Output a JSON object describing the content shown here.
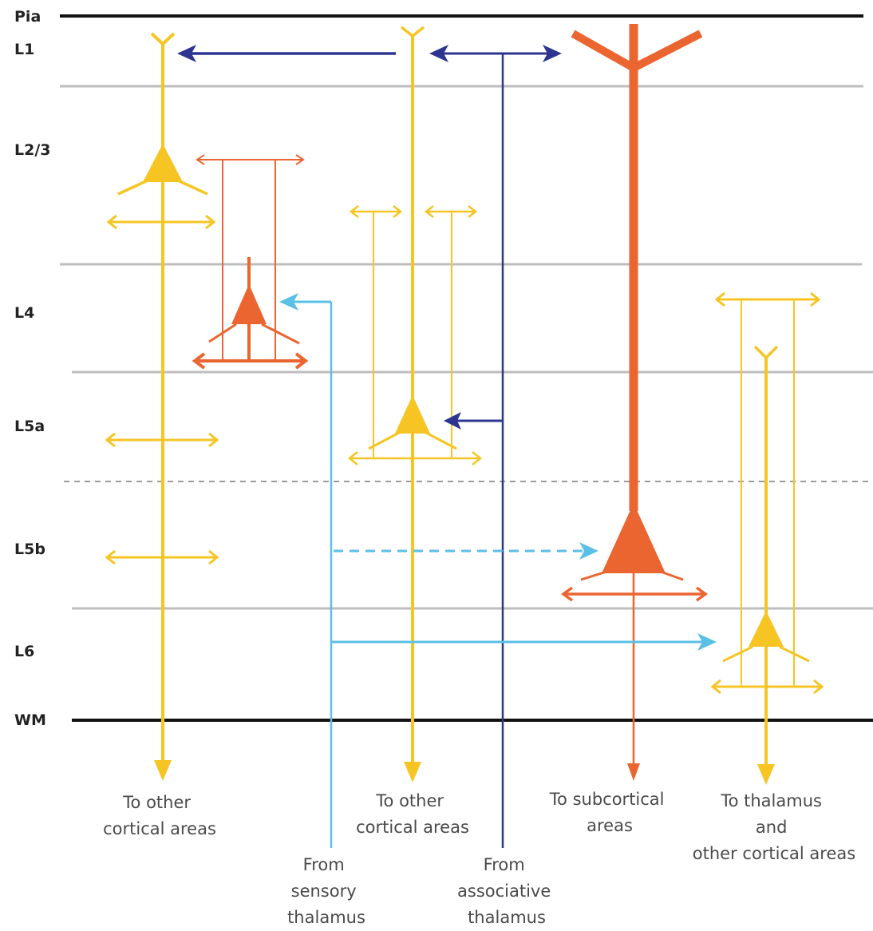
{
  "layers": {
    "pia": "Pia",
    "l1": "L1",
    "l23": "L2/3",
    "l4": "L4",
    "l5a": "L5a",
    "l5b": "L5b",
    "l6": "L6",
    "wm": "WM"
  },
  "captions": {
    "left_out": [
      "To other",
      "cortical areas"
    ],
    "mid_out": [
      "To other",
      "cortical areas"
    ],
    "subcortical_out": [
      "To subcortical",
      "areas"
    ],
    "thalamus_out": [
      "To thalamus",
      "and",
      "other cortical areas"
    ],
    "sensory_in": [
      "From",
      "sensory",
      "thalamus"
    ],
    "assoc_in": [
      "From",
      "associative",
      "thalamus"
    ]
  },
  "colors": {
    "yellow": "#F6C523",
    "orange": "#EB6530",
    "dark_blue": "#2E3590",
    "light_blue": "#5BC0E6",
    "gray_line": "#BDBDBD",
    "black_line": "#111111",
    "text": "#4a4a4a"
  }
}
